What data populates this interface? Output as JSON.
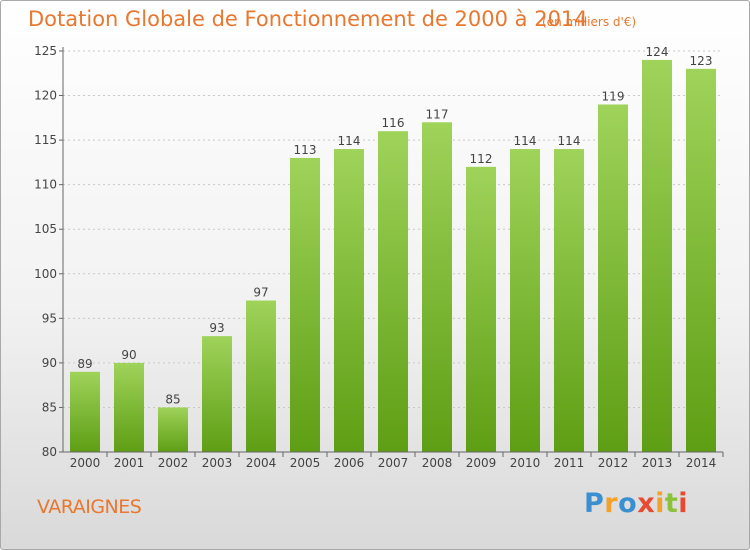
{
  "title": "Dotation Globale de Fonctionnement de 2000 à 2014",
  "subtitle": "(en milliers d'€)",
  "commune": "VARAIGNES",
  "logo": {
    "text": "Proxiti",
    "parts": [
      "P",
      "r",
      "o",
      "x",
      "i",
      "t",
      "i"
    ]
  },
  "colors": {
    "accent": "#e8772f",
    "bar_light": "#9fd35a",
    "bar_dark": "#5e9e14",
    "grid": "#c8c8c8"
  },
  "chart_data": {
    "type": "bar",
    "categories": [
      "2000",
      "2001",
      "2002",
      "2003",
      "2004",
      "2005",
      "2006",
      "2007",
      "2008",
      "2009",
      "2010",
      "2011",
      "2012",
      "2013",
      "2014"
    ],
    "values": [
      89,
      90,
      85,
      93,
      97,
      113,
      114,
      116,
      117,
      112,
      114,
      114,
      119,
      124,
      123
    ],
    "ylim": [
      80,
      125
    ],
    "yticks": [
      80,
      85,
      90,
      95,
      100,
      105,
      110,
      115,
      120,
      125
    ],
    "xlabel": "",
    "ylabel": "",
    "grid": true,
    "data_labels": true
  }
}
